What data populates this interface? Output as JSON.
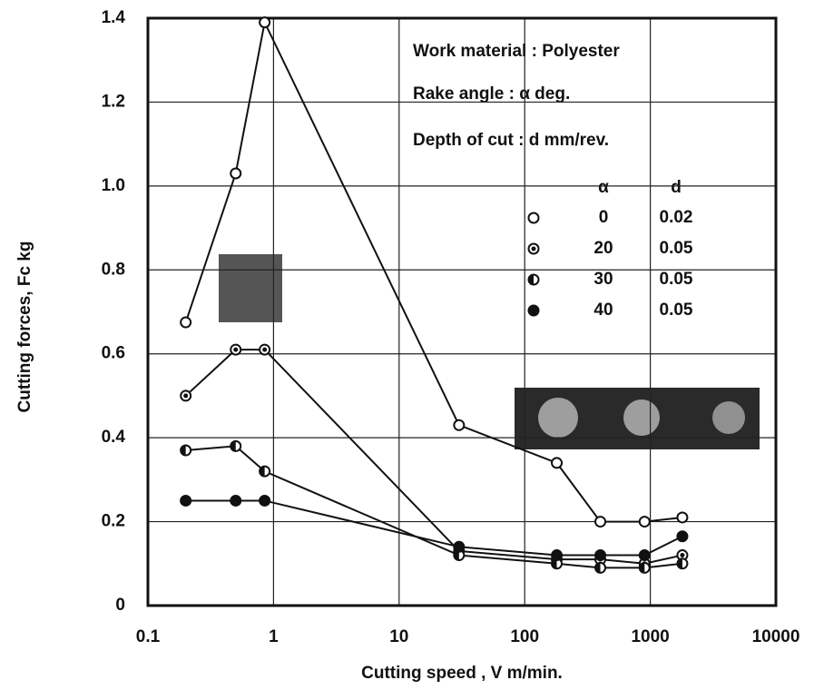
{
  "chart_data": {
    "type": "line",
    "x_label": "Cutting speed ,  V  m/min.",
    "y_label": "Cutting   forces,   Fc  kg",
    "annotations": [
      "Work material  :  Polyester",
      "Rake angle   :  α  deg.",
      "Depth of cut  :   d   mm/rev."
    ],
    "legend_headers": [
      "α",
      "d"
    ],
    "x": [
      0.2,
      0.5,
      0.85,
      30,
      180,
      400,
      900,
      1800
    ],
    "series": [
      {
        "name": "0",
        "depth": "0.02",
        "marker": "open",
        "color": "#111111",
        "values": [
          0.675,
          1.03,
          1.39,
          0.43,
          0.34,
          0.2,
          0.2,
          0.21
        ]
      },
      {
        "name": "20",
        "depth": "0.05",
        "marker": "ring",
        "color": "#111111",
        "values": [
          0.5,
          0.61,
          0.61,
          0.13,
          0.11,
          0.11,
          0.1,
          0.12
        ]
      },
      {
        "name": "30",
        "depth": "0.05",
        "marker": "half",
        "color": "#111111",
        "values": [
          0.37,
          0.38,
          0.32,
          0.12,
          0.1,
          0.09,
          0.09,
          0.1
        ]
      },
      {
        "name": "40",
        "depth": "0.05",
        "marker": "filled",
        "color": "#111111",
        "values": [
          0.25,
          0.25,
          0.25,
          0.14,
          0.12,
          0.12,
          0.12,
          0.165
        ]
      }
    ],
    "log_x": true,
    "xlim": [
      0.1,
      10000
    ],
    "xticks": [
      0.1,
      1,
      10,
      100,
      1000,
      10000
    ],
    "ylim": [
      0,
      1.4
    ],
    "yticks": [
      0,
      0.2,
      0.4,
      0.6,
      0.8,
      {
        "value": 1,
        "label": "1.0"
      },
      1.2,
      1.4
    ],
    "grid": true
  }
}
